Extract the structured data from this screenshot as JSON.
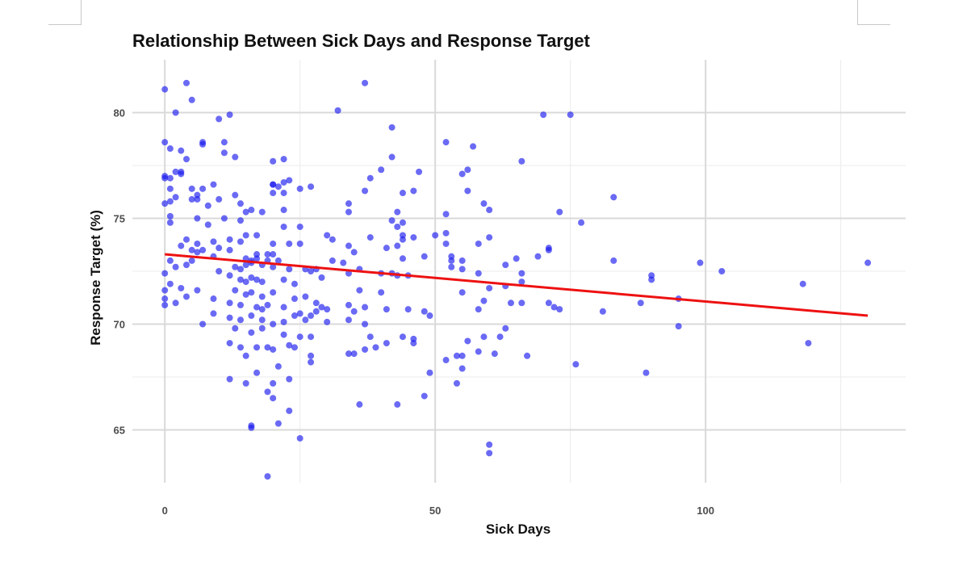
{
  "chart_data": {
    "type": "scatter",
    "title": "Relationship Between Sick Days and Response Target",
    "xlabel": "Sick Days",
    "ylabel": "Response Target (%)",
    "xlim": [
      -6,
      137
    ],
    "ylim": [
      62.5,
      82.5
    ],
    "x_ticks": [
      {
        "value": 0,
        "label": "0"
      },
      {
        "value": 50,
        "label": "50"
      },
      {
        "value": 100,
        "label": "100"
      }
    ],
    "x_minor": [
      25,
      75,
      125
    ],
    "y_ticks": [
      {
        "value": 65,
        "label": "65"
      },
      {
        "value": 70,
        "label": "70"
      },
      {
        "value": 75,
        "label": "75"
      },
      {
        "value": 80,
        "label": "80"
      }
    ],
    "y_minor": [
      67.5,
      72.5,
      77.5
    ],
    "grid": true,
    "legend": "none",
    "point_color": "#1a1aee",
    "line_color": "#ee1111",
    "trend_line": {
      "x": [
        0,
        130
      ],
      "y": [
        73.3,
        70.4
      ]
    },
    "points": [
      [
        0,
        81.1
      ],
      [
        4,
        81.4
      ],
      [
        37,
        81.4
      ],
      [
        5,
        80.6
      ],
      [
        2,
        80.0
      ],
      [
        32,
        80.1
      ],
      [
        70,
        79.9
      ],
      [
        75,
        79.9
      ],
      [
        12,
        79.9
      ],
      [
        10,
        79.7
      ],
      [
        42,
        79.3
      ],
      [
        0,
        78.6
      ],
      [
        7,
        78.6
      ],
      [
        11,
        78.6
      ],
      [
        7,
        78.5
      ],
      [
        52,
        78.6
      ],
      [
        57,
        78.4
      ],
      [
        1,
        78.3
      ],
      [
        3,
        78.2
      ],
      [
        11,
        78.1
      ],
      [
        13,
        77.9
      ],
      [
        42,
        77.9
      ],
      [
        4,
        77.8
      ],
      [
        20,
        77.7
      ],
      [
        22,
        77.8
      ],
      [
        66,
        77.7
      ],
      [
        2,
        77.2
      ],
      [
        3,
        77.1
      ],
      [
        3,
        77.2
      ],
      [
        40,
        77.3
      ],
      [
        47,
        77.2
      ],
      [
        55,
        77.1
      ],
      [
        56,
        77.3
      ],
      [
        0,
        77.0
      ],
      [
        0,
        76.9
      ],
      [
        1,
        76.9
      ],
      [
        23,
        76.8
      ],
      [
        38,
        76.9
      ],
      [
        20,
        76.6
      ],
      [
        20,
        76.6
      ],
      [
        21,
        76.5
      ],
      [
        22,
        76.7
      ],
      [
        25,
        76.4
      ],
      [
        27,
        76.5
      ],
      [
        5,
        76.4
      ],
      [
        7,
        76.4
      ],
      [
        9,
        76.6
      ],
      [
        37,
        76.3
      ],
      [
        44,
        76.2
      ],
      [
        46,
        76.3
      ],
      [
        56,
        76.3
      ],
      [
        1,
        76.4
      ],
      [
        2,
        76.0
      ],
      [
        6,
        76.1
      ],
      [
        13,
        76.1
      ],
      [
        20,
        76.2
      ],
      [
        22,
        76.2
      ],
      [
        83,
        76.0
      ],
      [
        1,
        75.8
      ],
      [
        0,
        75.7
      ],
      [
        5,
        75.9
      ],
      [
        6,
        75.9
      ],
      [
        10,
        75.9
      ],
      [
        14,
        75.7
      ],
      [
        34,
        75.7
      ],
      [
        59,
        75.7
      ],
      [
        60,
        75.4
      ],
      [
        73,
        75.3
      ],
      [
        8,
        75.6
      ],
      [
        15,
        75.3
      ],
      [
        16,
        75.4
      ],
      [
        18,
        75.3
      ],
      [
        22,
        75.4
      ],
      [
        34,
        75.3
      ],
      [
        52,
        75.2
      ],
      [
        1,
        75.1
      ],
      [
        6,
        75.0
      ],
      [
        11,
        75.0
      ],
      [
        43,
        75.3
      ],
      [
        1,
        74.8
      ],
      [
        42,
        74.9
      ],
      [
        44,
        74.8
      ],
      [
        77,
        74.8
      ],
      [
        14,
        74.9
      ],
      [
        8,
        74.7
      ],
      [
        22,
        74.6
      ],
      [
        25,
        74.6
      ],
      [
        43,
        74.6
      ],
      [
        52,
        74.3
      ],
      [
        15,
        74.2
      ],
      [
        17,
        74.2
      ],
      [
        12,
        74.0
      ],
      [
        30,
        74.2
      ],
      [
        31,
        74.0
      ],
      [
        38,
        74.1
      ],
      [
        44,
        74.2
      ],
      [
        44,
        74.0
      ],
      [
        46,
        74.1
      ],
      [
        50,
        74.2
      ],
      [
        52,
        73.8
      ],
      [
        4,
        74.0
      ],
      [
        6,
        73.8
      ],
      [
        9,
        73.9
      ],
      [
        14,
        73.9
      ],
      [
        20,
        73.8
      ],
      [
        23,
        73.8
      ],
      [
        25,
        73.8
      ],
      [
        34,
        73.7
      ],
      [
        43,
        73.7
      ],
      [
        58,
        73.8
      ],
      [
        60,
        74.1
      ],
      [
        71,
        73.6
      ],
      [
        71,
        73.5
      ],
      [
        3,
        73.7
      ],
      [
        5,
        73.5
      ],
      [
        6,
        73.4
      ],
      [
        7,
        73.5
      ],
      [
        10,
        73.6
      ],
      [
        12,
        73.5
      ],
      [
        17,
        73.3
      ],
      [
        19,
        73.3
      ],
      [
        20,
        73.3
      ],
      [
        35,
        73.4
      ],
      [
        41,
        73.6
      ],
      [
        44,
        73.1
      ],
      [
        48,
        73.2
      ],
      [
        53,
        73.2
      ],
      [
        1,
        73.0
      ],
      [
        5,
        73.0
      ],
      [
        9,
        73.2
      ],
      [
        15,
        73.1
      ],
      [
        16,
        73.0
      ],
      [
        17,
        73.1
      ],
      [
        19,
        73.0
      ],
      [
        21,
        73.0
      ],
      [
        31,
        73.0
      ],
      [
        33,
        72.9
      ],
      [
        53,
        73.0
      ],
      [
        55,
        73.0
      ],
      [
        63,
        72.8
      ],
      [
        65,
        73.1
      ],
      [
        69,
        73.2
      ],
      [
        83,
        73.0
      ],
      [
        99,
        72.9
      ],
      [
        130,
        72.9
      ],
      [
        0,
        72.4
      ],
      [
        2,
        72.7
      ],
      [
        4,
        72.8
      ],
      [
        13,
        72.7
      ],
      [
        14,
        72.6
      ],
      [
        15,
        72.8
      ],
      [
        16,
        72.9
      ],
      [
        18,
        72.8
      ],
      [
        20,
        72.7
      ],
      [
        23,
        72.6
      ],
      [
        26,
        72.6
      ],
      [
        27,
        72.5
      ],
      [
        28,
        72.6
      ],
      [
        34,
        72.4
      ],
      [
        36,
        72.6
      ],
      [
        40,
        72.4
      ],
      [
        42,
        72.4
      ],
      [
        43,
        72.3
      ],
      [
        45,
        72.3
      ],
      [
        53,
        72.7
      ],
      [
        55,
        72.6
      ],
      [
        58,
        72.4
      ],
      [
        66,
        72.4
      ],
      [
        10,
        72.5
      ],
      [
        12,
        72.3
      ],
      [
        14,
        72.1
      ],
      [
        15,
        72.0
      ],
      [
        16,
        72.2
      ],
      [
        17,
        72.1
      ],
      [
        18,
        72.0
      ],
      [
        22,
        72.1
      ],
      [
        24,
        71.9
      ],
      [
        29,
        72.2
      ],
      [
        60,
        71.7
      ],
      [
        63,
        71.8
      ],
      [
        66,
        72.0
      ],
      [
        90,
        72.3
      ],
      [
        90,
        72.1
      ],
      [
        103,
        72.5
      ],
      [
        118,
        71.9
      ],
      [
        1,
        71.9
      ],
      [
        0,
        71.6
      ],
      [
        3,
        71.7
      ],
      [
        6,
        71.6
      ],
      [
        13,
        71.6
      ],
      [
        15,
        71.4
      ],
      [
        16,
        71.5
      ],
      [
        18,
        71.3
      ],
      [
        20,
        71.5
      ],
      [
        24,
        71.2
      ],
      [
        26,
        71.3
      ],
      [
        28,
        71.0
      ],
      [
        36,
        71.6
      ],
      [
        40,
        71.5
      ],
      [
        55,
        71.5
      ],
      [
        0,
        71.2
      ],
      [
        0,
        70.9
      ],
      [
        2,
        71.0
      ],
      [
        4,
        71.3
      ],
      [
        9,
        71.2
      ],
      [
        12,
        71.0
      ],
      [
        14,
        70.9
      ],
      [
        17,
        70.8
      ],
      [
        18,
        70.7
      ],
      [
        19,
        70.9
      ],
      [
        22,
        70.8
      ],
      [
        25,
        70.5
      ],
      [
        27,
        70.4
      ],
      [
        28,
        70.6
      ],
      [
        29,
        70.8
      ],
      [
        30,
        70.7
      ],
      [
        34,
        70.9
      ],
      [
        35,
        70.6
      ],
      [
        37,
        70.8
      ],
      [
        41,
        70.7
      ],
      [
        48,
        70.6
      ],
      [
        49,
        70.4
      ],
      [
        58,
        70.7
      ],
      [
        59,
        71.1
      ],
      [
        64,
        71.0
      ],
      [
        66,
        71.0
      ],
      [
        71,
        71.0
      ],
      [
        72,
        70.8
      ],
      [
        73,
        70.7
      ],
      [
        81,
        70.6
      ],
      [
        88,
        71.0
      ],
      [
        95,
        71.2
      ],
      [
        7,
        70.0
      ],
      [
        9,
        70.5
      ],
      [
        12,
        70.3
      ],
      [
        14,
        70.2
      ],
      [
        16,
        70.4
      ],
      [
        18,
        70.2
      ],
      [
        20,
        70.0
      ],
      [
        22,
        70.1
      ],
      [
        24,
        70.4
      ],
      [
        26,
        70.2
      ],
      [
        30,
        70.1
      ],
      [
        34,
        70.2
      ],
      [
        37,
        70.0
      ],
      [
        45,
        70.7
      ],
      [
        13,
        69.8
      ],
      [
        16,
        69.6
      ],
      [
        18,
        69.8
      ],
      [
        22,
        69.5
      ],
      [
        25,
        69.4
      ],
      [
        27,
        69.4
      ],
      [
        38,
        69.4
      ],
      [
        41,
        69.1
      ],
      [
        44,
        69.4
      ],
      [
        46,
        69.3
      ],
      [
        56,
        69.2
      ],
      [
        59,
        69.4
      ],
      [
        62,
        69.4
      ],
      [
        63,
        69.8
      ],
      [
        95,
        69.9
      ],
      [
        119,
        69.1
      ],
      [
        12,
        69.1
      ],
      [
        14,
        68.9
      ],
      [
        17,
        68.9
      ],
      [
        19,
        68.9
      ],
      [
        20,
        68.8
      ],
      [
        23,
        69.0
      ],
      [
        24,
        68.9
      ],
      [
        27,
        68.5
      ],
      [
        27,
        68.2
      ],
      [
        34,
        68.6
      ],
      [
        35,
        68.6
      ],
      [
        37,
        68.8
      ],
      [
        39,
        68.9
      ],
      [
        46,
        69.1
      ],
      [
        52,
        68.3
      ],
      [
        54,
        68.5
      ],
      [
        55,
        68.5
      ],
      [
        58,
        68.7
      ],
      [
        61,
        68.6
      ],
      [
        67,
        68.5
      ],
      [
        76,
        68.1
      ],
      [
        15,
        68.5
      ],
      [
        17,
        67.7
      ],
      [
        21,
        68.0
      ],
      [
        55,
        67.9
      ],
      [
        49,
        67.7
      ],
      [
        89,
        67.7
      ],
      [
        12,
        67.4
      ],
      [
        23,
        67.4
      ],
      [
        54,
        67.2
      ],
      [
        15,
        67.2
      ],
      [
        20,
        67.2
      ],
      [
        36,
        66.2
      ],
      [
        43,
        66.2
      ],
      [
        19,
        66.8
      ],
      [
        20,
        66.5
      ],
      [
        48,
        66.6
      ],
      [
        16,
        65.2
      ],
      [
        16,
        65.1
      ],
      [
        21,
        65.3
      ],
      [
        23,
        65.9
      ],
      [
        25,
        64.6
      ],
      [
        60,
        64.3
      ],
      [
        60,
        63.9
      ],
      [
        19,
        62.8
      ]
    ]
  }
}
